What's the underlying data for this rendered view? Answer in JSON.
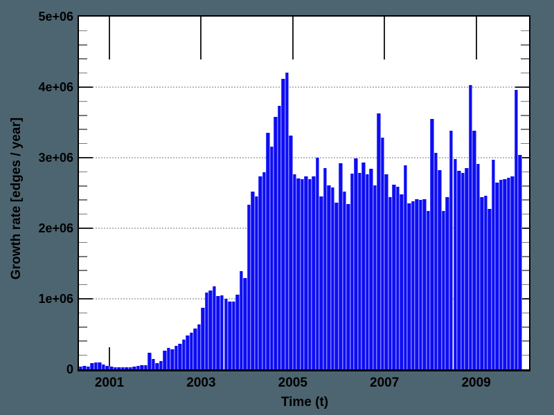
{
  "chart_data": {
    "type": "bar",
    "title": "",
    "xlabel": "Time (t)",
    "ylabel": "Growth rate [edges / year]",
    "x_tick_labels": [
      "2001",
      "2003",
      "2005",
      "2007",
      "2009"
    ],
    "x_tick_years": [
      2001,
      2003,
      2005,
      2007,
      2009
    ],
    "y_tick_labels": [
      "0",
      "1e+06",
      "2e+06",
      "3e+06",
      "4e+06",
      "5e+06"
    ],
    "y_tick_values": [
      0,
      1000000,
      2000000,
      3000000,
      4000000,
      5000000
    ],
    "ylim": [
      0,
      5000000
    ],
    "xlim": [
      2000.33,
      2010.17
    ],
    "y_minor_tick_step": 200000,
    "grid": "horizontal-dotted",
    "series_start": "2000-05",
    "interval": "monthly",
    "values": [
      40000,
      50000,
      40000,
      90000,
      100000,
      100000,
      70000,
      50000,
      40000,
      30000,
      30000,
      25000,
      25000,
      30000,
      40000,
      50000,
      60000,
      60000,
      240000,
      145000,
      90000,
      120000,
      260000,
      300000,
      280000,
      330000,
      360000,
      420000,
      480000,
      520000,
      580000,
      640000,
      870000,
      1090000,
      1120000,
      1180000,
      1040000,
      1050000,
      1000000,
      960000,
      960000,
      1060000,
      1390000,
      1290000,
      2330000,
      2520000,
      2450000,
      2740000,
      2790000,
      3350000,
      3160000,
      3580000,
      3740000,
      4120000,
      4210000,
      3310000,
      2760000,
      2710000,
      2700000,
      2740000,
      2700000,
      2740000,
      3000000,
      2450000,
      2850000,
      2610000,
      2580000,
      2360000,
      2920000,
      2520000,
      2340000,
      2770000,
      2990000,
      2780000,
      2930000,
      2760000,
      2840000,
      2610000,
      3630000,
      3280000,
      2760000,
      2440000,
      2620000,
      2590000,
      2480000,
      2890000,
      2350000,
      2380000,
      2410000,
      2400000,
      2410000,
      2250000,
      3550000,
      3070000,
      2820000,
      2250000,
      2440000,
      3380000,
      2980000,
      2810000,
      2780000,
      2850000,
      4030000,
      3380000,
      2910000,
      2440000,
      2460000,
      2270000,
      2970000,
      2650000,
      2690000,
      2700000,
      2720000,
      2740000,
      3960000,
      3040000
    ],
    "colors": {
      "page_background": "#4d6570",
      "plot_background": "#ffffff",
      "bar_fill": "#0d0df2",
      "bar_edge_light": "#7d7dff",
      "plot_border": "#000000",
      "gridline": "#b9b9b9",
      "text": "#000000"
    }
  }
}
